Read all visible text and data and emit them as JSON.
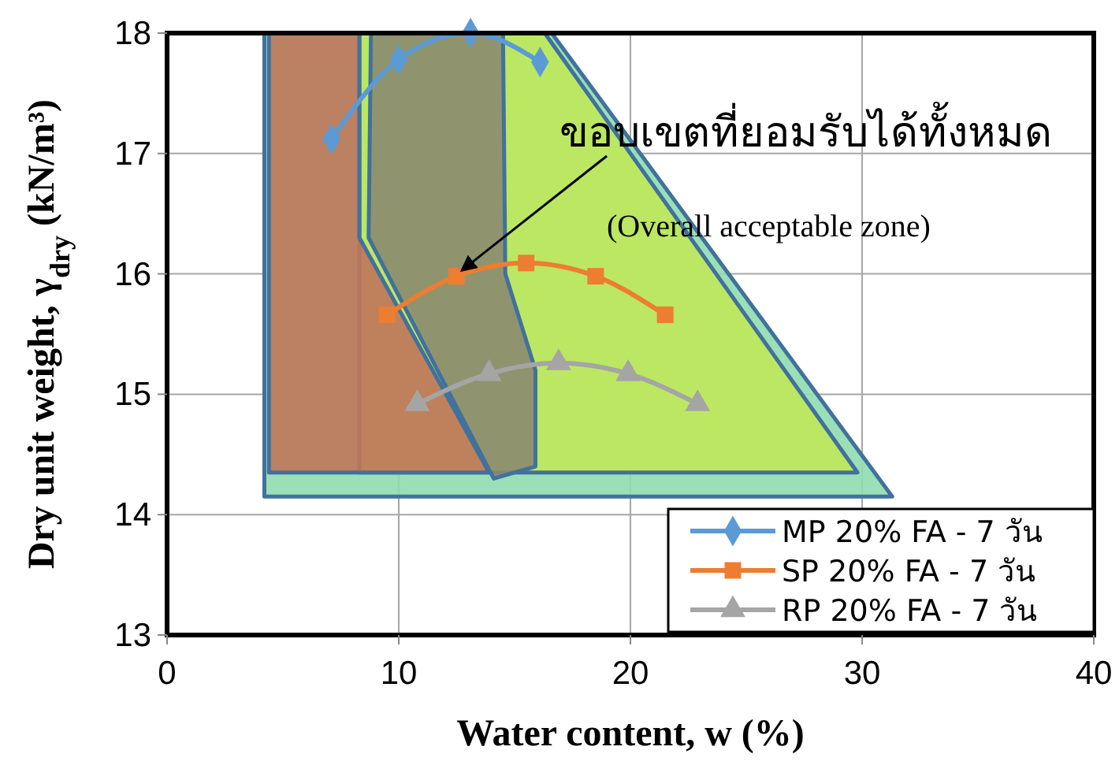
{
  "chart_data": {
    "type": "line",
    "xlabel": "Water content, w (%)",
    "ylabel": "Dry unit weight, γ$_{dry}$ (kN/m³)",
    "xlim": [
      0,
      40
    ],
    "xticks": [
      0,
      10,
      20,
      30,
      40
    ],
    "ylim": [
      13,
      18
    ],
    "yticks": [
      13,
      14,
      15,
      16,
      17,
      18
    ],
    "grid": true,
    "legend": "bottom right",
    "annotations": [
      {
        "text": "ขอบเขตที่ยอมรับได้ทั้งหมด",
        "x": 12.5,
        "y": 16.0
      },
      "(Overall acceptable zone)"
    ],
    "series": [
      {
        "type": "area",
        "color": "#8fdcb0",
        "x": [
          4.2,
          16.6,
          31.3,
          4.2,
          4.2
        ],
        "values": [
          18,
          18,
          14.15,
          14.15,
          18
        ]
      },
      {
        "type": "area",
        "color": "#bfe85a",
        "x": [
          8.3,
          16.3,
          29.8,
          8.3,
          8.3
        ],
        "values": [
          18,
          18,
          14.35,
          14.35,
          18
        ]
      },
      {
        "type": "area",
        "color": "#c0765a",
        "x": [
          4.4,
          8.3,
          8.3,
          13.9,
          4.4,
          4.4
        ],
        "values": [
          18,
          18,
          16.3,
          14.35,
          14.35,
          18
        ]
      },
      {
        "type": "area",
        "color": "#8b8b70",
        "x": [
          8.8,
          14.5,
          14.6,
          15.9,
          15.9,
          14.1,
          8.7,
          8.8
        ],
        "values": [
          18,
          18,
          16.0,
          15.2,
          14.4,
          14.3,
          16.3,
          18
        ]
      },
      {
        "name": "MP 20% FA - 7 วัน",
        "color": "#5b9bd5",
        "marker": "diamond",
        "x": [
          7.1,
          10.0,
          13.1,
          16.1
        ],
        "values": [
          17.12,
          17.78,
          18.0,
          17.76
        ]
      },
      {
        "name": "SP 20% FA - 7 วัน",
        "color": "#ed7d31",
        "marker": "square",
        "x": [
          9.5,
          12.5,
          15.5,
          18.5,
          21.5
        ],
        "values": [
          15.66,
          15.98,
          16.09,
          15.98,
          15.66
        ]
      },
      {
        "name": "RP 20% FA - 7 วัน",
        "color": "#a5a5a5",
        "marker": "triangle",
        "x": [
          10.8,
          13.9,
          16.9,
          19.9,
          22.9
        ],
        "values": [
          14.92,
          15.17,
          15.26,
          15.17,
          14.92
        ]
      }
    ]
  }
}
